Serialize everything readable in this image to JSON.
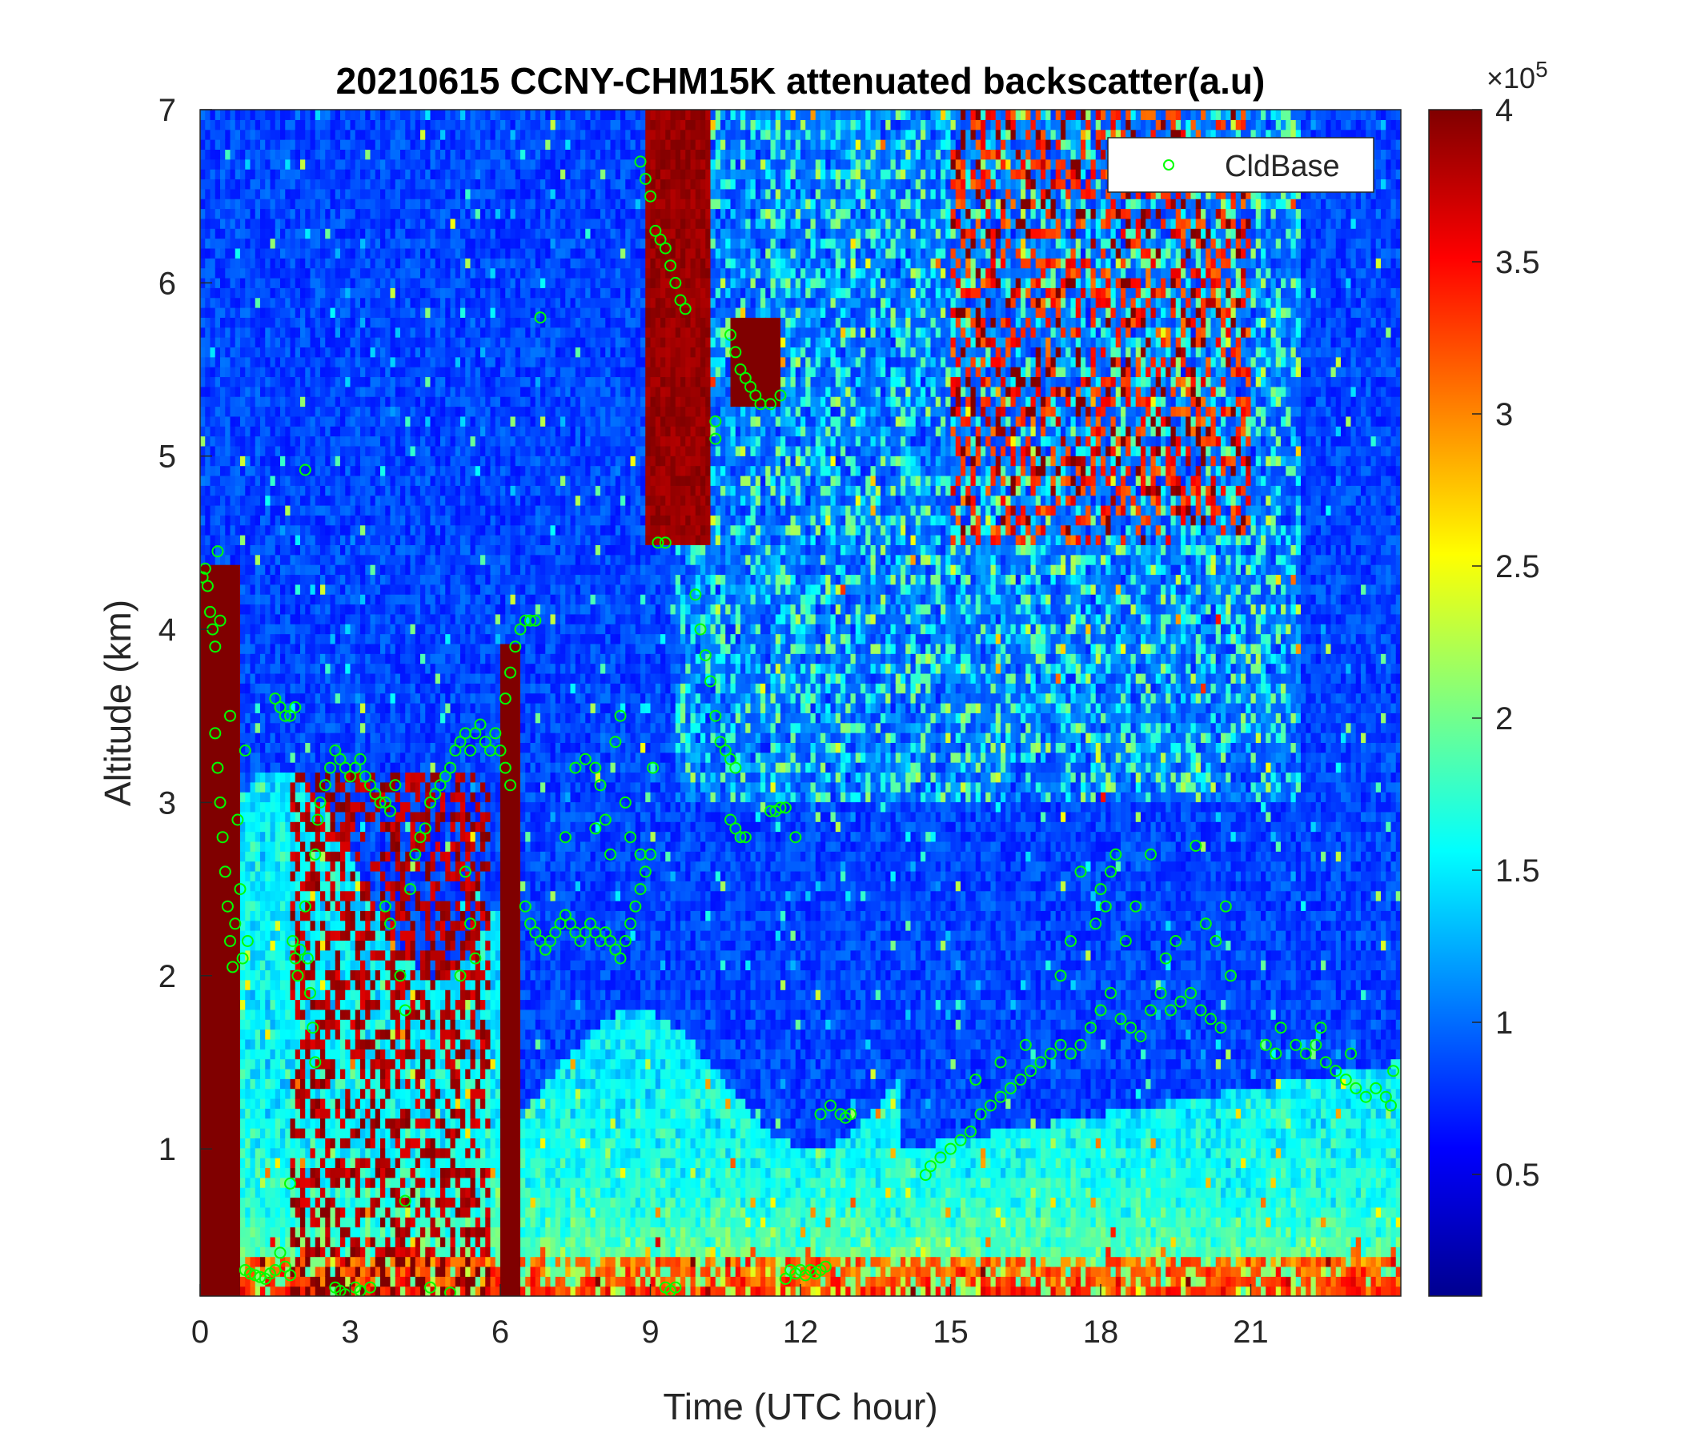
{
  "chart_data": {
    "type": "heatmap",
    "title": "20210615 CCNY-CHM15K attenuated backscatter(a.u)",
    "xlabel": "Time (UTC hour)",
    "ylabel": "Altitude (km)",
    "xlim": [
      0,
      24
    ],
    "ylim": [
      0.15,
      7
    ],
    "xticks": [
      0,
      3,
      6,
      9,
      12,
      15,
      18,
      21
    ],
    "yticks": [
      1,
      2,
      3,
      4,
      5,
      6,
      7
    ],
    "colorbar": {
      "colormap": "jet",
      "clim": [
        0.1,
        4
      ],
      "ticks": [
        0.5,
        1,
        1.5,
        2,
        2.5,
        3,
        3.5,
        4
      ],
      "multiplier_base": "×10",
      "multiplier_exp": "5"
    },
    "legend": {
      "location": "top-right",
      "entries": [
        "CldBase"
      ]
    },
    "series": [
      {
        "name": "CldBase",
        "marker": "circle",
        "color": "#00ff00",
        "points": [
          [
            0.05,
            4.3
          ],
          [
            0.1,
            4.35
          ],
          [
            0.15,
            4.25
          ],
          [
            0.2,
            4.1
          ],
          [
            0.25,
            4.0
          ],
          [
            0.3,
            3.9
          ],
          [
            0.35,
            4.45
          ],
          [
            0.4,
            4.05
          ],
          [
            0.3,
            3.4
          ],
          [
            0.35,
            3.2
          ],
          [
            0.4,
            3.0
          ],
          [
            0.45,
            2.8
          ],
          [
            0.5,
            2.6
          ],
          [
            0.55,
            2.4
          ],
          [
            0.6,
            2.2
          ],
          [
            0.65,
            2.05
          ],
          [
            0.7,
            2.3
          ],
          [
            0.8,
            2.5
          ],
          [
            0.85,
            2.1
          ],
          [
            0.75,
            2.9
          ],
          [
            0.9,
            3.3
          ],
          [
            0.95,
            2.2
          ],
          [
            0.6,
            3.5
          ],
          [
            0.9,
            0.3
          ],
          [
            1.0,
            0.28
          ],
          [
            1.1,
            0.27
          ],
          [
            1.2,
            0.26
          ],
          [
            1.3,
            0.25
          ],
          [
            1.4,
            0.28
          ],
          [
            1.5,
            0.3
          ],
          [
            1.6,
            0.4
          ],
          [
            1.7,
            0.32
          ],
          [
            1.8,
            0.27
          ],
          [
            1.5,
            3.6
          ],
          [
            1.6,
            3.55
          ],
          [
            1.7,
            3.5
          ],
          [
            1.8,
            3.5
          ],
          [
            1.9,
            3.55
          ],
          [
            1.85,
            2.2
          ],
          [
            1.9,
            2.1
          ],
          [
            1.95,
            2.0
          ],
          [
            2.0,
            2.15
          ],
          [
            2.1,
            2.4
          ],
          [
            2.15,
            2.1
          ],
          [
            2.2,
            1.9
          ],
          [
            2.25,
            1.7
          ],
          [
            2.3,
            1.5
          ],
          [
            2.1,
            4.92
          ],
          [
            1.8,
            0.8
          ],
          [
            2.3,
            2.7
          ],
          [
            2.35,
            2.9
          ],
          [
            2.4,
            3.0
          ],
          [
            2.5,
            3.1
          ],
          [
            2.6,
            3.2
          ],
          [
            2.7,
            3.3
          ],
          [
            2.8,
            3.25
          ],
          [
            2.9,
            3.2
          ],
          [
            3.0,
            3.15
          ],
          [
            3.1,
            3.2
          ],
          [
            3.2,
            3.25
          ],
          [
            3.3,
            3.15
          ],
          [
            3.4,
            3.1
          ],
          [
            3.5,
            3.05
          ],
          [
            3.6,
            3.0
          ],
          [
            3.7,
            3.0
          ],
          [
            3.8,
            2.95
          ],
          [
            3.9,
            3.1
          ],
          [
            2.7,
            0.2
          ],
          [
            2.8,
            0.18
          ],
          [
            2.9,
            0.16
          ],
          [
            3.1,
            0.2
          ],
          [
            3.2,
            0.18
          ],
          [
            3.4,
            0.2
          ],
          [
            3.7,
            2.4
          ],
          [
            3.8,
            2.3
          ],
          [
            4.0,
            2.0
          ],
          [
            4.1,
            1.8
          ],
          [
            4.2,
            2.5
          ],
          [
            4.3,
            2.7
          ],
          [
            4.4,
            2.8
          ],
          [
            4.5,
            2.85
          ],
          [
            4.1,
            0.7
          ],
          [
            4.6,
            0.2
          ],
          [
            5.0,
            0.17
          ],
          [
            4.6,
            3.0
          ],
          [
            4.7,
            3.05
          ],
          [
            4.8,
            3.1
          ],
          [
            4.9,
            3.15
          ],
          [
            5.0,
            3.2
          ],
          [
            5.1,
            3.3
          ],
          [
            5.2,
            3.35
          ],
          [
            5.3,
            3.4
          ],
          [
            5.4,
            3.3
          ],
          [
            5.5,
            3.4
          ],
          [
            5.6,
            3.45
          ],
          [
            5.7,
            3.35
          ],
          [
            5.8,
            3.3
          ],
          [
            5.9,
            3.4
          ],
          [
            6.0,
            3.3
          ],
          [
            6.1,
            3.2
          ],
          [
            6.2,
            3.1
          ],
          [
            5.3,
            2.6
          ],
          [
            5.4,
            2.3
          ],
          [
            5.5,
            2.1
          ],
          [
            5.2,
            2.0
          ],
          [
            6.1,
            3.6
          ],
          [
            6.2,
            3.75
          ],
          [
            6.3,
            3.9
          ],
          [
            6.4,
            4.0
          ],
          [
            6.5,
            4.05
          ],
          [
            6.6,
            4.05
          ],
          [
            6.7,
            4.05
          ],
          [
            6.8,
            5.8
          ],
          [
            6.5,
            2.4
          ],
          [
            6.6,
            2.3
          ],
          [
            6.7,
            2.25
          ],
          [
            6.8,
            2.2
          ],
          [
            6.9,
            2.15
          ],
          [
            7.0,
            2.2
          ],
          [
            7.1,
            2.25
          ],
          [
            7.2,
            2.3
          ],
          [
            7.3,
            2.35
          ],
          [
            7.4,
            2.3
          ],
          [
            7.5,
            2.25
          ],
          [
            7.6,
            2.2
          ],
          [
            7.7,
            2.25
          ],
          [
            7.8,
            2.3
          ],
          [
            7.9,
            2.25
          ],
          [
            8.0,
            2.2
          ],
          [
            8.1,
            2.25
          ],
          [
            8.2,
            2.2
          ],
          [
            8.3,
            2.15
          ],
          [
            8.4,
            2.1
          ],
          [
            8.5,
            2.2
          ],
          [
            8.6,
            2.3
          ],
          [
            8.7,
            2.4
          ],
          [
            8.8,
            2.5
          ],
          [
            8.9,
            2.6
          ],
          [
            9.0,
            2.7
          ],
          [
            9.05,
            3.2
          ],
          [
            7.3,
            2.8
          ],
          [
            7.5,
            3.2
          ],
          [
            7.7,
            3.25
          ],
          [
            7.9,
            3.2
          ],
          [
            8.0,
            3.1
          ],
          [
            8.1,
            2.9
          ],
          [
            8.2,
            2.7
          ],
          [
            8.3,
            3.35
          ],
          [
            8.4,
            3.5
          ],
          [
            8.5,
            3.0
          ],
          [
            8.6,
            2.8
          ],
          [
            8.8,
            2.7
          ],
          [
            7.9,
            2.85
          ],
          [
            8.8,
            6.7
          ],
          [
            8.9,
            6.6
          ],
          [
            9.0,
            6.5
          ],
          [
            9.1,
            6.3
          ],
          [
            9.2,
            6.25
          ],
          [
            9.3,
            6.2
          ],
          [
            9.4,
            6.1
          ],
          [
            9.5,
            6.0
          ],
          [
            9.6,
            5.9
          ],
          [
            9.7,
            5.85
          ],
          [
            9.3,
            4.5
          ],
          [
            9.15,
            4.5
          ],
          [
            9.9,
            4.2
          ],
          [
            10.0,
            4.0
          ],
          [
            10.1,
            3.85
          ],
          [
            10.2,
            3.7
          ],
          [
            10.3,
            3.5
          ],
          [
            10.4,
            3.35
          ],
          [
            10.5,
            3.3
          ],
          [
            10.6,
            3.25
          ],
          [
            10.7,
            3.2
          ],
          [
            10.6,
            2.9
          ],
          [
            10.7,
            2.85
          ],
          [
            10.8,
            2.8
          ],
          [
            10.9,
            2.8
          ],
          [
            10.3,
            5.2
          ],
          [
            10.3,
            5.1
          ],
          [
            10.6,
            5.7
          ],
          [
            10.7,
            5.6
          ],
          [
            10.8,
            5.5
          ],
          [
            10.9,
            5.45
          ],
          [
            11.0,
            5.4
          ],
          [
            11.1,
            5.35
          ],
          [
            11.2,
            5.3
          ],
          [
            11.4,
            5.3
          ],
          [
            11.6,
            5.35
          ],
          [
            11.4,
            2.95
          ],
          [
            11.5,
            2.95
          ],
          [
            11.6,
            2.97
          ],
          [
            11.7,
            2.97
          ],
          [
            11.9,
            2.8
          ],
          [
            11.7,
            0.25
          ],
          [
            11.8,
            0.3
          ],
          [
            11.9,
            0.28
          ],
          [
            12.0,
            0.3
          ],
          [
            12.1,
            0.27
          ],
          [
            12.2,
            0.3
          ],
          [
            12.3,
            0.28
          ],
          [
            12.4,
            0.3
          ],
          [
            12.5,
            0.32
          ],
          [
            12.4,
            1.2
          ],
          [
            12.6,
            1.25
          ],
          [
            12.8,
            1.2
          ],
          [
            12.9,
            1.18
          ],
          [
            13.0,
            1.2
          ],
          [
            9.3,
            0.2
          ],
          [
            9.4,
            0.18
          ],
          [
            9.5,
            0.2
          ],
          [
            14.5,
            0.85
          ],
          [
            14.6,
            0.9
          ],
          [
            14.8,
            0.95
          ],
          [
            15.0,
            1.0
          ],
          [
            15.2,
            1.05
          ],
          [
            15.4,
            1.1
          ],
          [
            15.6,
            1.2
          ],
          [
            15.8,
            1.25
          ],
          [
            16.0,
            1.3
          ],
          [
            16.2,
            1.35
          ],
          [
            16.4,
            1.4
          ],
          [
            16.6,
            1.45
          ],
          [
            16.8,
            1.5
          ],
          [
            17.0,
            1.55
          ],
          [
            17.2,
            1.6
          ],
          [
            17.4,
            1.55
          ],
          [
            17.6,
            1.6
          ],
          [
            17.8,
            1.7
          ],
          [
            18.0,
            1.8
          ],
          [
            18.2,
            1.9
          ],
          [
            18.4,
            1.75
          ],
          [
            18.6,
            1.7
          ],
          [
            18.8,
            1.65
          ],
          [
            19.0,
            1.8
          ],
          [
            19.2,
            1.9
          ],
          [
            19.4,
            1.8
          ],
          [
            19.6,
            1.85
          ],
          [
            19.8,
            1.9
          ],
          [
            20.0,
            1.8
          ],
          [
            20.2,
            1.75
          ],
          [
            20.4,
            1.7
          ],
          [
            15.5,
            1.4
          ],
          [
            16.0,
            1.5
          ],
          [
            16.5,
            1.6
          ],
          [
            17.2,
            2.0
          ],
          [
            17.4,
            2.2
          ],
          [
            17.6,
            2.6
          ],
          [
            17.9,
            2.3
          ],
          [
            18.0,
            2.5
          ],
          [
            18.1,
            2.4
          ],
          [
            18.2,
            2.6
          ],
          [
            18.3,
            2.7
          ],
          [
            18.5,
            2.2
          ],
          [
            18.7,
            2.4
          ],
          [
            19.0,
            2.7
          ],
          [
            19.3,
            2.1
          ],
          [
            19.5,
            2.2
          ],
          [
            19.9,
            2.75
          ],
          [
            20.1,
            2.3
          ],
          [
            20.3,
            2.2
          ],
          [
            20.5,
            2.4
          ],
          [
            20.6,
            2.0
          ],
          [
            21.3,
            1.6
          ],
          [
            21.5,
            1.55
          ],
          [
            21.6,
            1.7
          ],
          [
            21.9,
            1.6
          ],
          [
            22.1,
            1.55
          ],
          [
            22.3,
            1.6
          ],
          [
            22.5,
            1.5
          ],
          [
            22.7,
            1.45
          ],
          [
            22.9,
            1.4
          ],
          [
            23.1,
            1.35
          ],
          [
            23.3,
            1.3
          ],
          [
            23.5,
            1.35
          ],
          [
            23.7,
            1.3
          ],
          [
            23.8,
            1.25
          ],
          [
            23.85,
            1.45
          ],
          [
            22.4,
            1.7
          ],
          [
            23.0,
            1.55
          ]
        ]
      }
    ]
  }
}
